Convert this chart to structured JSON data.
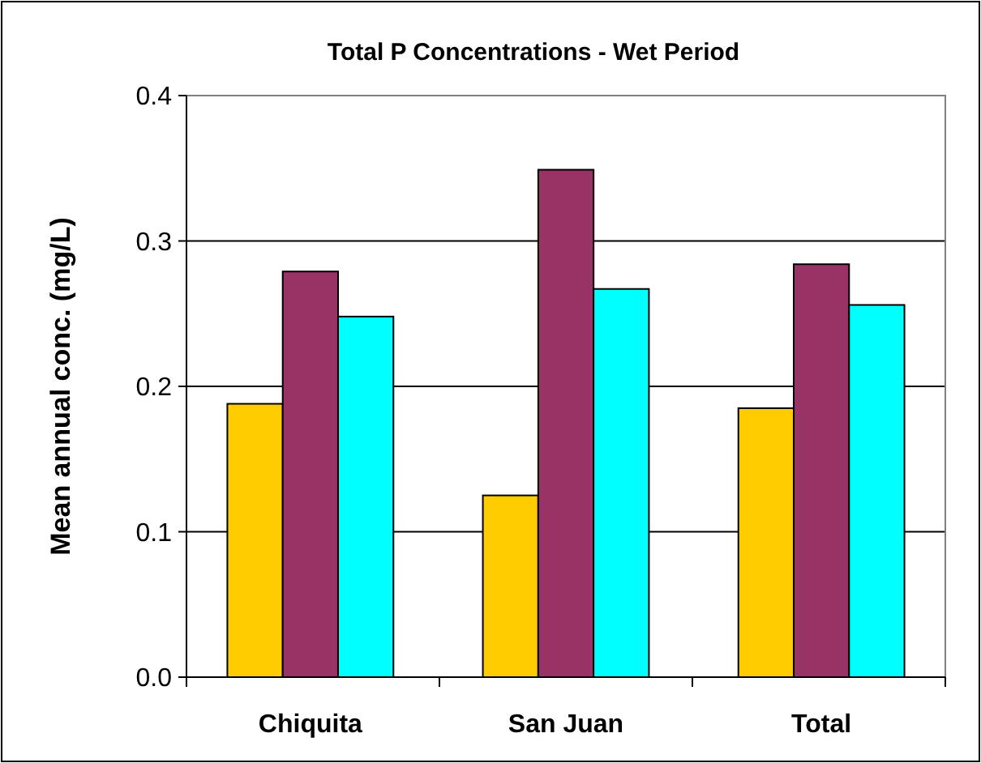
{
  "chart_data": {
    "type": "bar",
    "title": "Total P Concentrations - Wet Period",
    "ylabel": "Mean annual conc. (mg/L)",
    "categories": [
      "Chiquita",
      "San Juan",
      "Total"
    ],
    "series": [
      {
        "color": "#ffcc00",
        "values": [
          0.188,
          0.125,
          0.185
        ]
      },
      {
        "color": "#993366",
        "values": [
          0.279,
          0.349,
          0.284
        ]
      },
      {
        "color": "#00ffff",
        "values": [
          0.248,
          0.267,
          0.256
        ]
      }
    ],
    "ylim": [
      0,
      0.4
    ],
    "yticks": [
      {
        "value": 0,
        "label": "0.0"
      },
      0.1,
      0.2,
      0.3,
      0.4
    ],
    "grid": "y"
  }
}
